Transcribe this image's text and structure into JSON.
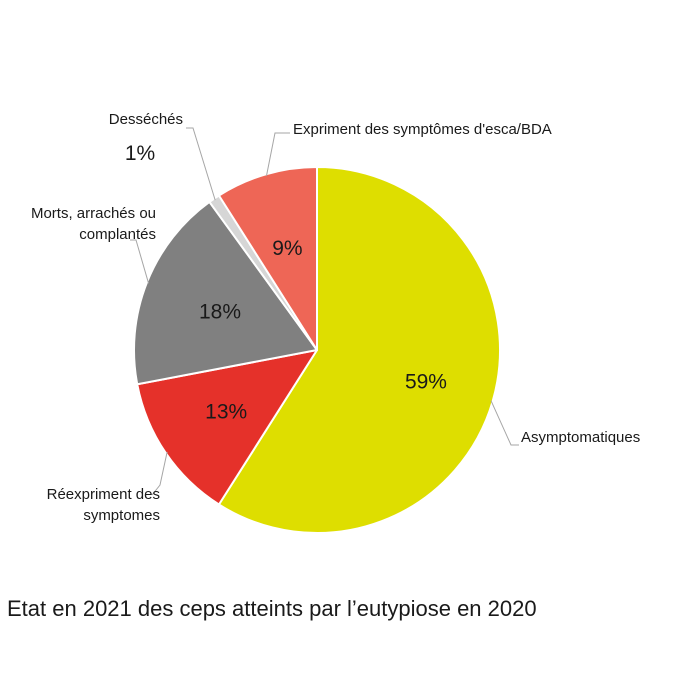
{
  "chart_data": {
    "type": "pie",
    "title": "Etat en 2021 des ceps atteints par l’eutypiose en 2020",
    "slices": [
      {
        "name": "Asymptomatiques",
        "label_lines": [
          "Asymptomatiques"
        ],
        "value": 59,
        "value_label": "59%",
        "color": "#dede00"
      },
      {
        "name": "Réexpriment des symptomes",
        "label_lines": [
          "Réexpriment des",
          "symptomes"
        ],
        "value": 13,
        "value_label": "13%",
        "color": "#e5312a"
      },
      {
        "name": "Morts, arrachés ou complantés",
        "label_lines": [
          "Morts, arrachés ou",
          "complantés"
        ],
        "value": 18,
        "value_label": "18%",
        "color": "#808080"
      },
      {
        "name": "Desséchés",
        "label_lines": [
          "Desséchés"
        ],
        "value": 1,
        "value_label": "1%",
        "color": "#d6d6d6"
      },
      {
        "name": "Expriment des symptômes d'esca/BDA",
        "label_lines": [
          "Expriment des symptômes d'esca/BDA"
        ],
        "value": 9,
        "value_label": "9%",
        "color": "#ee6656"
      }
    ],
    "start": "12 o'clock",
    "direction": "clockwise",
    "legend": "none",
    "labels": "outside with leader lines; percentages inside slices (outside for smallest slice)"
  }
}
